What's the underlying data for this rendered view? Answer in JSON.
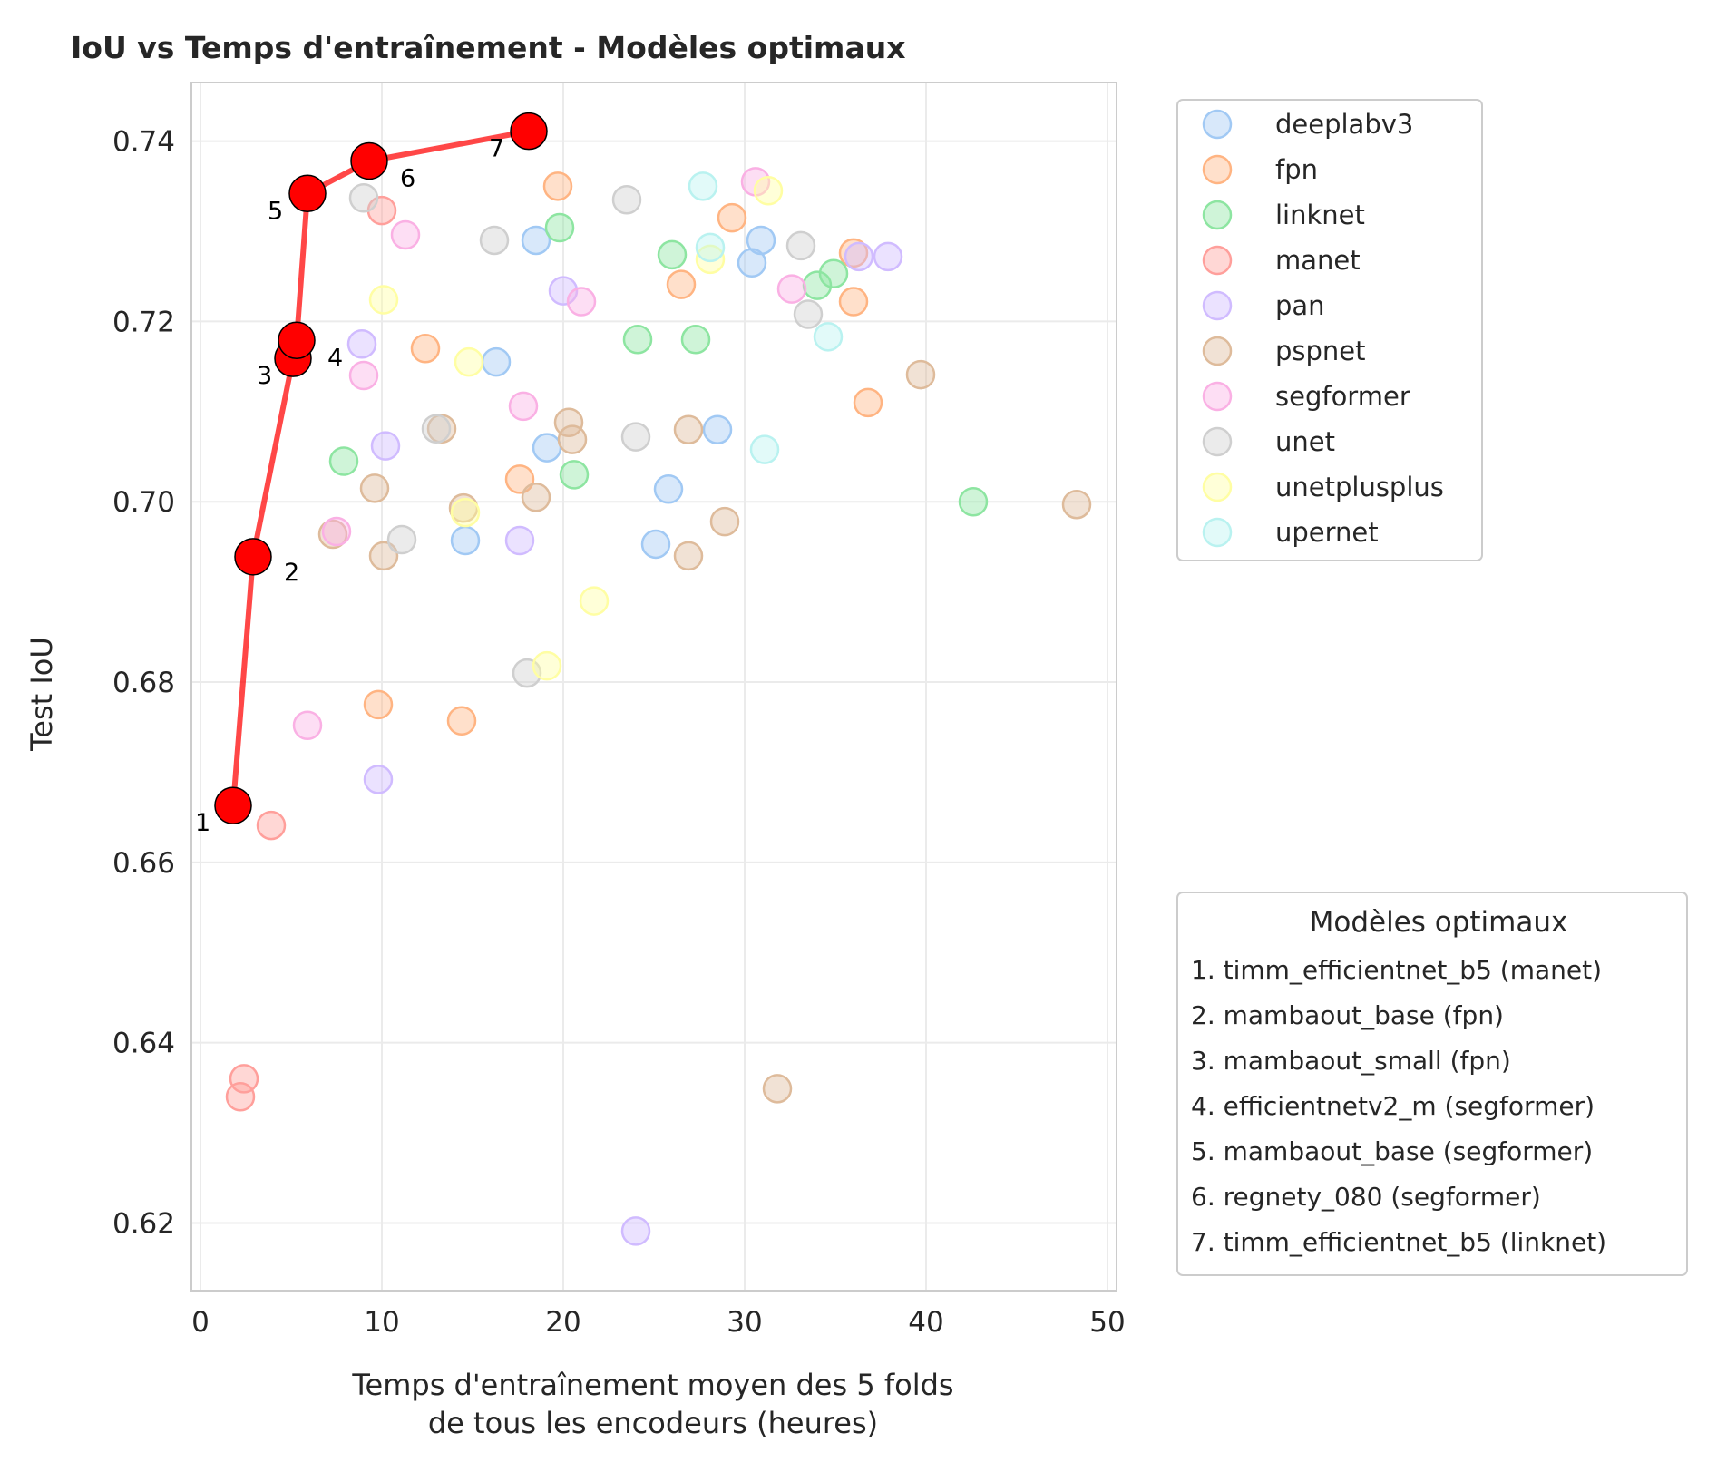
{
  "chart_data": {
    "type": "scatter",
    "title": "IoU vs Temps d'entraînement - Modèles optimaux",
    "xlabel_lines": [
      "Temps d'entraînement moyen des 5 folds",
      "de tous les encodeurs (heures)"
    ],
    "ylabel": "Test IoU",
    "xlim": [
      -0.5,
      50.5
    ],
    "ylim": [
      0.6125,
      0.7465
    ],
    "x_ticks": [
      0,
      10,
      20,
      30,
      40,
      50
    ],
    "y_ticks": [
      0.62,
      0.64,
      0.66,
      0.68,
      0.7,
      0.72,
      0.74
    ],
    "grid": true,
    "legend_position": "right-top",
    "series": [
      {
        "name": "deeplabv3",
        "color": "#a1c9f4",
        "points": [
          [
            18.5,
            0.729
          ],
          [
            16.3,
            0.7155
          ],
          [
            19.1,
            0.706
          ],
          [
            14.6,
            0.6957
          ],
          [
            25.8,
            0.7014
          ],
          [
            25.1,
            0.6953
          ],
          [
            28.5,
            0.708
          ],
          [
            30.4,
            0.7265
          ],
          [
            30.9,
            0.729
          ]
        ]
      },
      {
        "name": "fpn",
        "color": "#ffb482",
        "points": [
          [
            19.7,
            0.735
          ],
          [
            29.3,
            0.7315
          ],
          [
            26.5,
            0.7241
          ],
          [
            36.0,
            0.7276
          ],
          [
            36.0,
            0.7222
          ],
          [
            36.8,
            0.711
          ],
          [
            12.4,
            0.717
          ],
          [
            17.6,
            0.7025
          ],
          [
            9.8,
            0.6775
          ],
          [
            14.4,
            0.6757
          ]
        ]
      },
      {
        "name": "linknet",
        "color": "#8de5a1",
        "points": [
          [
            19.8,
            0.7304
          ],
          [
            26.0,
            0.7274
          ],
          [
            34.0,
            0.724
          ],
          [
            34.9,
            0.7253
          ],
          [
            24.1,
            0.718
          ],
          [
            27.3,
            0.718
          ],
          [
            20.6,
            0.703
          ],
          [
            7.9,
            0.7045
          ],
          [
            42.6,
            0.7
          ]
        ]
      },
      {
        "name": "manet",
        "color": "#ff9f9b",
        "points": [
          [
            10.0,
            0.7323
          ],
          [
            3.9,
            0.6641
          ],
          [
            2.4,
            0.636
          ],
          [
            2.2,
            0.634
          ]
        ]
      },
      {
        "name": "pan",
        "color": "#d0bbff",
        "points": [
          [
            8.9,
            0.7175
          ],
          [
            20.0,
            0.7234
          ],
          [
            10.2,
            0.7062
          ],
          [
            17.6,
            0.6957
          ],
          [
            9.8,
            0.6692
          ],
          [
            24.0,
            0.6191
          ],
          [
            36.3,
            0.7272
          ],
          [
            37.9,
            0.7272
          ]
        ]
      },
      {
        "name": "pspnet",
        "color": "#debb9b",
        "points": [
          [
            13.3,
            0.7081
          ],
          [
            9.6,
            0.7015
          ],
          [
            7.3,
            0.6964
          ],
          [
            10.1,
            0.694
          ],
          [
            14.5,
            0.6993
          ],
          [
            18.5,
            0.7005
          ],
          [
            20.3,
            0.7088
          ],
          [
            20.5,
            0.7069
          ],
          [
            26.9,
            0.708
          ],
          [
            26.9,
            0.694
          ],
          [
            28.9,
            0.6978
          ],
          [
            39.7,
            0.7141
          ],
          [
            48.3,
            0.6997
          ],
          [
            31.8,
            0.6349
          ]
        ]
      },
      {
        "name": "segformer",
        "color": "#fab0e4",
        "points": [
          [
            11.3,
            0.7296
          ],
          [
            9.0,
            0.714
          ],
          [
            7.5,
            0.6967
          ],
          [
            5.9,
            0.6752
          ],
          [
            17.8,
            0.7106
          ],
          [
            21.0,
            0.7222
          ],
          [
            30.6,
            0.7355
          ],
          [
            32.6,
            0.7236
          ]
        ]
      },
      {
        "name": "unet",
        "color": "#cfcfcf",
        "points": [
          [
            9.0,
            0.7337
          ],
          [
            16.2,
            0.729
          ],
          [
            23.5,
            0.7335
          ],
          [
            33.1,
            0.7284
          ],
          [
            33.5,
            0.7208
          ],
          [
            24.0,
            0.7072
          ],
          [
            13.0,
            0.7081
          ],
          [
            11.1,
            0.6958
          ],
          [
            18.0,
            0.681
          ]
        ]
      },
      {
        "name": "unetplusplus",
        "color": "#fffea3",
        "points": [
          [
            10.1,
            0.7224
          ],
          [
            14.8,
            0.7155
          ],
          [
            14.6,
            0.6988
          ],
          [
            21.7,
            0.689
          ],
          [
            19.1,
            0.6818
          ],
          [
            28.1,
            0.7269
          ],
          [
            31.3,
            0.7345
          ]
        ]
      },
      {
        "name": "upernet",
        "color": "#b9f2f0",
        "points": [
          [
            27.7,
            0.735
          ],
          [
            28.1,
            0.7282
          ],
          [
            31.1,
            0.7058
          ],
          [
            34.6,
            0.7183
          ]
        ]
      }
    ],
    "optimal": {
      "color": "#ff0000",
      "legend_title": "Modèles optimaux",
      "points": [
        {
          "label": "1",
          "x": 1.8,
          "y": 0.6663,
          "desc": "1. timm_efficientnet_b5 (manet)"
        },
        {
          "label": "2",
          "x": 2.9,
          "y": 0.6939,
          "desc": "2. mambaout_base (fpn)"
        },
        {
          "label": "3",
          "x": 5.1,
          "y": 0.7159,
          "desc": "3. mambaout_small (fpn)"
        },
        {
          "label": "4",
          "x": 5.3,
          "y": 0.7179,
          "desc": "4. efficientnetv2_m (segformer)"
        },
        {
          "label": "5",
          "x": 5.9,
          "y": 0.7342,
          "desc": "5. mambaout_base (segformer)"
        },
        {
          "label": "6",
          "x": 9.3,
          "y": 0.7378,
          "desc": "6. regnety_080 (segformer)"
        },
        {
          "label": "7",
          "x": 18.1,
          "y": 0.7411,
          "desc": "7. timm_efficientnet_b5 (linknet)"
        }
      ]
    }
  }
}
